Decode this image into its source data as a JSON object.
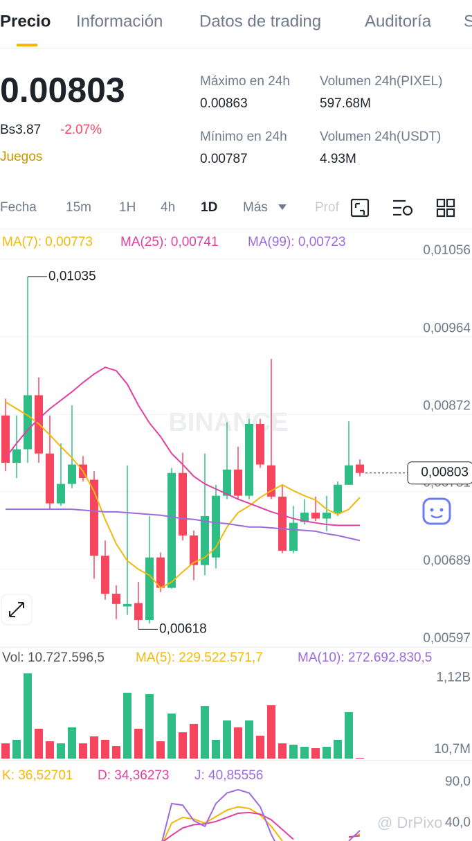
{
  "tabs": [
    "Precio",
    "Información",
    "Datos de trading",
    "Auditoría",
    "S"
  ],
  "price": "0.00803",
  "fiat": "Bs3.87",
  "change": "-2.07%",
  "category": "Juegos",
  "stats": [
    {
      "label": "Máximo en 24h",
      "value": "0.00863"
    },
    {
      "label": "Volumen 24h(PIXEL)",
      "value": "597.68M"
    },
    {
      "label": "Mínimo en 24h",
      "value": "0.00787"
    },
    {
      "label": "Volumen 24h(USDT)",
      "value": "4.93M"
    }
  ],
  "intervals": [
    "Fecha",
    "15m",
    "1H",
    "4h",
    "1D",
    "Más",
    "Prof"
  ],
  "watermark": "BINANCE",
  "footer": "@ DrPixo",
  "chart_data": [
    {
      "type": "candlestick",
      "up_color": "#2ebd85",
      "down_color": "#f6465d",
      "open": [
        0.00871,
        0.00815,
        0.00831,
        0.00895,
        0.00826,
        0.00767,
        0.0079,
        0.00813,
        0.00795,
        0.00705,
        0.0066,
        0.00645,
        0.00649,
        0.00629,
        0.00703,
        0.00667,
        0.00803,
        0.00729,
        0.00694,
        0.00703,
        0.00776,
        0.00807,
        0.00776,
        0.00861,
        0.00812,
        0.00775,
        0.00711,
        0.00745,
        0.00756,
        0.00749,
        0.00756,
        0.00789,
        0.00813
      ],
      "high": [
        0.00891,
        0.00871,
        0.01035,
        0.00916,
        0.00871,
        0.00838,
        0.00883,
        0.00823,
        0.00805,
        0.00723,
        0.0067,
        0.00812,
        0.00674,
        0.00752,
        0.00709,
        0.00809,
        0.00827,
        0.00735,
        0.00826,
        0.00789,
        0.00863,
        0.00834,
        0.00867,
        0.00867,
        0.00938,
        0.00789,
        0.00764,
        0.00772,
        0.00775,
        0.00776,
        0.00793,
        0.00864,
        0.00819
      ],
      "low": [
        0.00805,
        0.00797,
        0.00815,
        0.00815,
        0.0076,
        0.00764,
        0.00785,
        0.00793,
        0.00678,
        0.00653,
        0.0063,
        0.00635,
        0.00618,
        0.00625,
        0.00662,
        0.00666,
        0.00723,
        0.00676,
        0.00682,
        0.0069,
        0.00772,
        0.00771,
        0.00772,
        0.00809,
        0.00772,
        0.00708,
        0.00708,
        0.00742,
        0.00746,
        0.00734,
        0.00752,
        0.00789,
        0.00799
      ],
      "close": [
        0.00815,
        0.00831,
        0.00895,
        0.00826,
        0.00767,
        0.0079,
        0.00813,
        0.00797,
        0.00705,
        0.0066,
        0.00648,
        0.00648,
        0.00629,
        0.00703,
        0.00667,
        0.00803,
        0.00729,
        0.00694,
        0.00752,
        0.00776,
        0.00807,
        0.00776,
        0.00861,
        0.00813,
        0.00775,
        0.00711,
        0.00744,
        0.00756,
        0.00749,
        0.00756,
        0.00789,
        0.00812,
        0.00803
      ],
      "series": [
        {
          "name": "MA(7): 0,00773",
          "color": "#f0b90b",
          "values": [
            0.00887,
            0.00879,
            0.00871,
            0.00861,
            0.00848,
            0.00834,
            0.00821,
            0.00805,
            0.00781,
            0.00748,
            0.00719,
            0.00699,
            0.00689,
            0.00682,
            0.00667,
            0.00674,
            0.00686,
            0.00697,
            0.00703,
            0.00715,
            0.00739,
            0.00756,
            0.00764,
            0.00774,
            0.00782,
            0.00789,
            0.00782,
            0.00776,
            0.00771,
            0.0076,
            0.00754,
            0.0076,
            0.00774
          ]
        },
        {
          "name": "MA(25): 0,00741",
          "color": "#e040a0",
          "values": [
            0.00821,
            0.00838,
            0.00854,
            0.00867,
            0.00879,
            0.00889,
            0.00899,
            0.0091,
            0.0092,
            0.00928,
            0.00924,
            0.00908,
            0.00883,
            0.00862,
            0.00846,
            0.00826,
            0.00813,
            0.00799,
            0.0079,
            0.00784,
            0.00778,
            0.00772,
            0.00767,
            0.00762,
            0.00757,
            0.00753,
            0.00749,
            0.00746,
            0.00744,
            0.00742,
            0.00741,
            0.00741,
            0.00741
          ]
        },
        {
          "name": "MA(99): 0,00723",
          "color": "#9c6ade",
          "values": [
            0.0076,
            0.0076,
            0.0076,
            0.0076,
            0.0076,
            0.0076,
            0.0076,
            0.00759,
            0.00758,
            0.00757,
            0.00757,
            0.00756,
            0.00755,
            0.00754,
            0.00753,
            0.00751,
            0.00749,
            0.00748,
            0.00746,
            0.00744,
            0.00743,
            0.00741,
            0.00739,
            0.00739,
            0.00738,
            0.00737,
            0.00736,
            0.00735,
            0.00734,
            0.00731,
            0.00729,
            0.00726,
            0.00723
          ]
        }
      ],
      "ylim": [
        0.00588,
        0.01088
      ],
      "yticks": [
        {
          "value": 0.01056,
          "label": "0,01056"
        },
        {
          "value": 0.00964,
          "label": "0,00964"
        },
        {
          "value": 0.00872,
          "label": "0,00872"
        },
        {
          "value": 0.00781,
          "label": "0,00781"
        },
        {
          "value": 0.00689,
          "label": "0,00689"
        },
        {
          "value": 0.00597,
          "label": "0,00597"
        }
      ],
      "grid": true,
      "current": {
        "value": 0.00803,
        "label": "0,00803"
      },
      "annotations": [
        {
          "value": 0.01035,
          "label": "0,01035"
        },
        {
          "value": 0.00618,
          "label": "0,00618"
        }
      ]
    },
    {
      "type": "bar",
      "legend": [
        "Vol: 10.727.596,5",
        "MA(5): 229.522.571,7",
        "MA(10): 272.692.830,5"
      ],
      "legend_colors": [
        "#555555",
        "#f0b90b",
        "#9c6ade"
      ],
      "values": [
        235000000,
        289000000,
        1315000000,
        460000000,
        267000000,
        235000000,
        481000000,
        235000000,
        342000000,
        289000000,
        192000000,
        1016000000,
        460000000,
        994000000,
        267000000,
        695000000,
        406000000,
        535000000,
        812000000,
        289000000,
        588000000,
        481000000,
        588000000,
        353000000,
        823000000,
        235000000,
        214000000,
        182000000,
        160000000,
        182000000,
        289000000,
        716000000,
        10727596.5
      ],
      "ylim": [
        0,
        1390000000
      ],
      "yticks": [
        {
          "value": 1120000000,
          "label": "1,12B"
        },
        {
          "value": 10700000,
          "label": "10,7M"
        }
      ]
    },
    {
      "type": "line",
      "series": [
        {
          "name": "K: 36,52701",
          "color": "#f0b90b",
          "values": [
            null,
            null,
            null,
            null,
            null,
            null,
            null,
            null,
            null,
            null,
            null,
            null,
            null,
            null,
            20,
            50,
            57,
            55,
            50,
            58,
            66,
            70,
            68,
            60,
            46,
            28,
            null,
            null,
            null,
            null,
            null,
            32,
            36.53
          ]
        },
        {
          "name": "D: 34,36273",
          "color": "#e040a0",
          "values": [
            null,
            null,
            null,
            null,
            null,
            null,
            null,
            null,
            null,
            null,
            null,
            null,
            null,
            null,
            25,
            35,
            44,
            48,
            49,
            52,
            57,
            62,
            63,
            61,
            54,
            42,
            30,
            null,
            null,
            null,
            null,
            33,
            34.36
          ]
        },
        {
          "name": "J: 40,85556",
          "color": "#9c6ade",
          "values": [
            null,
            null,
            null,
            null,
            null,
            null,
            null,
            null,
            null,
            null,
            null,
            null,
            null,
            null,
            20,
            74,
            72,
            53,
            46,
            74,
            87,
            91,
            87,
            70,
            36,
            10,
            null,
            null,
            null,
            null,
            null,
            28,
            40.86
          ]
        }
      ],
      "ylim": [
        28,
        125
      ],
      "yticks": [
        {
          "value": 90,
          "label": "90,0"
        },
        {
          "value": 40,
          "label": "40,0"
        }
      ]
    }
  ]
}
